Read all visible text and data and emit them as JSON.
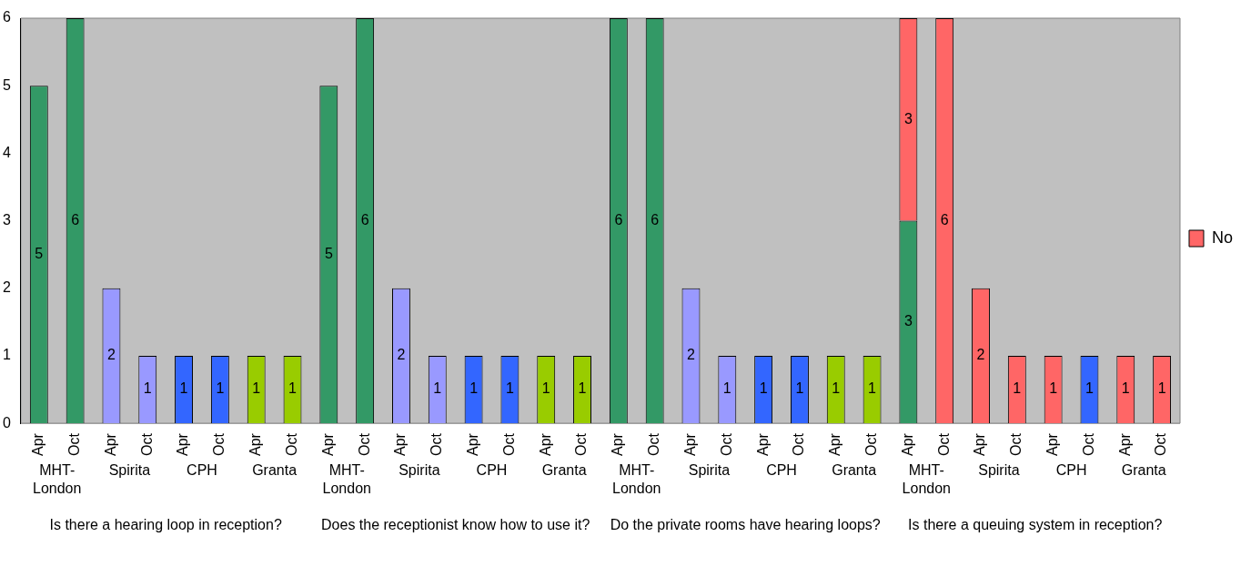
{
  "chart_data": {
    "type": "bar",
    "stacked": true,
    "categories": [
      "Apr",
      "Oct",
      "Apr",
      "Oct",
      "Apr",
      "Oct",
      "Apr",
      "Oct",
      "Apr",
      "Oct",
      "Apr",
      "Oct",
      "Apr",
      "Oct",
      "Apr",
      "Oct",
      "Apr",
      "Oct",
      "Apr",
      "Oct",
      "Apr",
      "Oct",
      "Apr",
      "Oct",
      "Apr",
      "Oct",
      "Apr",
      "Oct",
      "Apr",
      "Oct",
      "Apr",
      "Oct"
    ],
    "series": [
      {
        "values": [
          5,
          6,
          2,
          1,
          1,
          1,
          1,
          1,
          5,
          6,
          2,
          1,
          1,
          1,
          1,
          1,
          6,
          6,
          2,
          1,
          1,
          1,
          1,
          1,
          3,
          null,
          null,
          null,
          null,
          1,
          null,
          null
        ],
        "colors": [
          "#339966",
          "#339966",
          "#9999ff",
          "#9999ff",
          "#3366ff",
          "#3366ff",
          "#99cc00",
          "#99cc00",
          "#339966",
          "#339966",
          "#9999ff",
          "#9999ff",
          "#3366ff",
          "#3366ff",
          "#99cc00",
          "#99cc00",
          "#339966",
          "#339966",
          "#9999ff",
          "#9999ff",
          "#3366ff",
          "#3366ff",
          "#99cc00",
          "#99cc00",
          "#339966",
          "#339966",
          "#9999ff",
          "#9999ff",
          "#3366ff",
          "#3366ff",
          "#99cc00",
          "#99cc00"
        ]
      },
      {
        "name": "No",
        "color": "#ff6666",
        "values": [
          null,
          null,
          null,
          null,
          null,
          null,
          null,
          null,
          null,
          null,
          null,
          null,
          null,
          null,
          null,
          null,
          null,
          null,
          null,
          null,
          null,
          null,
          null,
          null,
          3,
          6,
          2,
          1,
          1,
          null,
          1,
          1
        ]
      }
    ],
    "ylim": [
      0,
      6
    ],
    "yticks": [
      0,
      1,
      2,
      3,
      4,
      5,
      6
    ],
    "grid": false,
    "legend": "right",
    "data_labels": true,
    "annotations": [
      "MHT-London",
      "Spirita",
      "CPH",
      "Granta",
      "MHT-London",
      "Spirita",
      "CPH",
      "Granta",
      "MHT-London",
      "Spirita",
      "CPH",
      "Granta",
      "MHT-London",
      "Spirita",
      "CPH",
      "Granta",
      "Is there a hearing loop in reception?",
      "Does the receptionist know how to use it?",
      "Do the private rooms have hearing loops?",
      "Is there a queuing system in reception?"
    ]
  }
}
